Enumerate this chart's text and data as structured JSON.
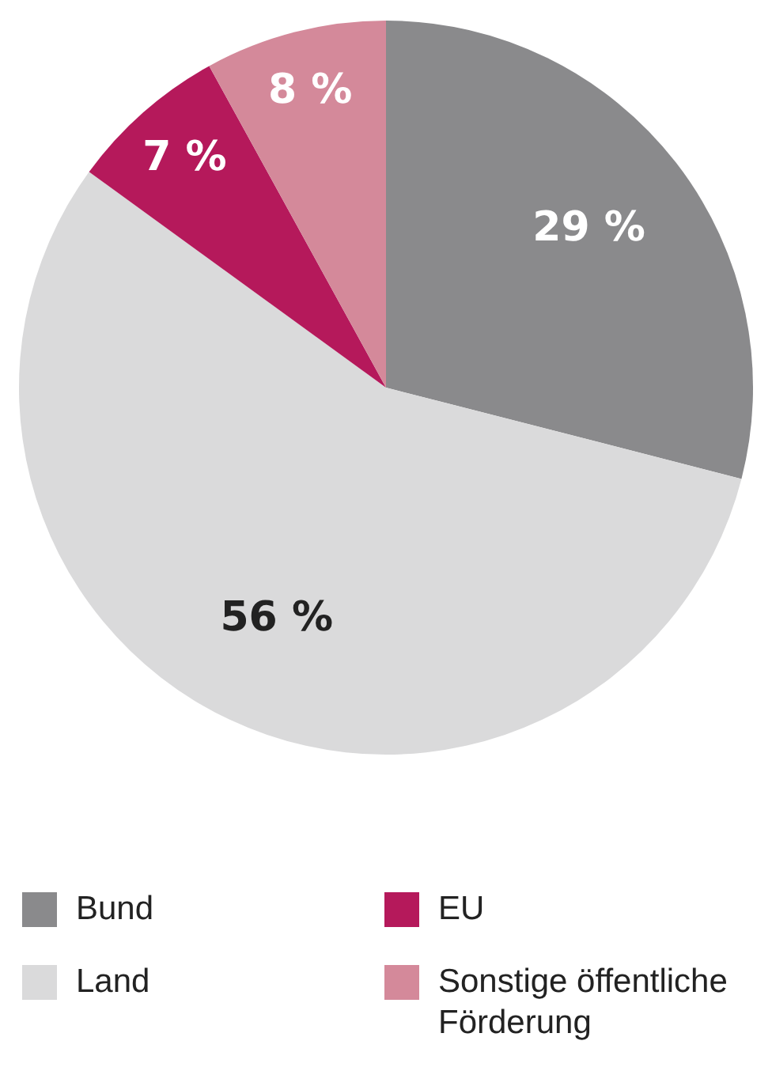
{
  "chart_data": {
    "type": "pie",
    "categories": [
      "Bund",
      "Land",
      "EU",
      "Sonstige öffentliche Förderung"
    ],
    "values": [
      29,
      56,
      7,
      8
    ],
    "colors": [
      "#8a8a8c",
      "#dadadb",
      "#b5195b",
      "#d4899a"
    ],
    "value_labels": [
      "29 %",
      "56 %",
      "7 %",
      "8 %"
    ],
    "legend": "bottom"
  }
}
